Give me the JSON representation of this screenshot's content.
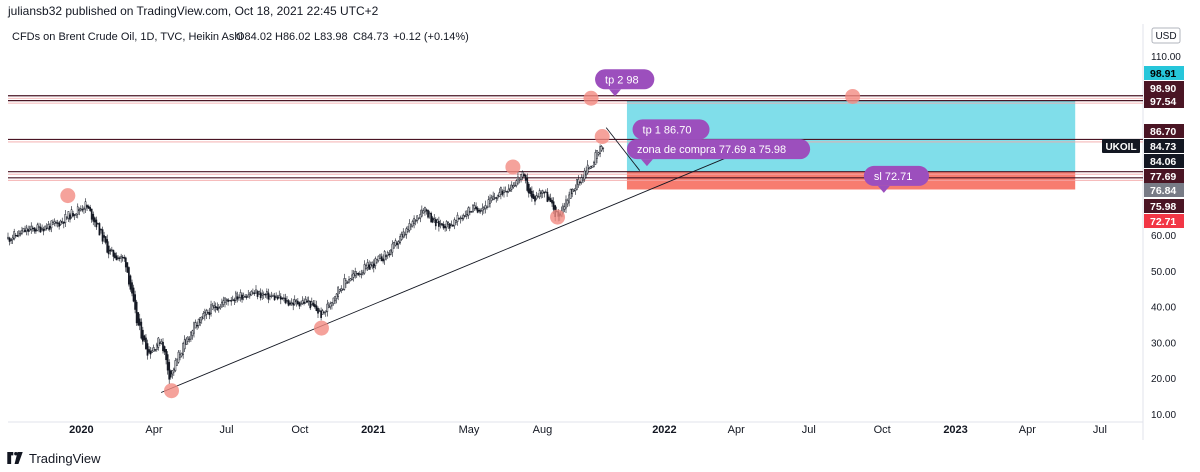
{
  "header": {
    "published": "juliansb32 published on TradingView.com, Oct 18, 2021 22:45 UTC+2"
  },
  "footer": {
    "brand": "TradingView"
  },
  "chart_data": {
    "type": "candlestick",
    "legend": "CFDs on Brent Crude Oil, 1D, TVC, Heikin Ashi",
    "ohlc": {
      "open": "O84.02",
      "high": "H86.02",
      "low": "L83.98",
      "close": "C84.73",
      "change": "+0.12 (+0.14%)"
    },
    "currency": "USD",
    "y_axis": {
      "ticks": [
        "110.00",
        "60.00",
        "50.00",
        "40.00",
        "30.00",
        "20.00",
        "10.00"
      ],
      "range": [
        10,
        110
      ]
    },
    "x_axis": {
      "ticks": [
        "2020",
        "Apr",
        "Jul",
        "Oct",
        "2021",
        "May",
        "Aug",
        "2022",
        "Apr",
        "Jul",
        "Oct",
        "2023",
        "Apr",
        "Jul"
      ]
    },
    "price_series": [
      [
        "2019-10-01",
        59
      ],
      [
        "2019-10-20",
        61
      ],
      [
        "2019-11-10",
        62
      ],
      [
        "2019-12-01",
        63
      ],
      [
        "2019-12-20",
        66
      ],
      [
        "2020-01-06",
        68.5
      ],
      [
        "2020-01-20",
        63
      ],
      [
        "2020-02-05",
        55
      ],
      [
        "2020-02-25",
        53
      ],
      [
        "2020-03-10",
        36
      ],
      [
        "2020-03-25",
        27
      ],
      [
        "2020-04-10",
        31
      ],
      [
        "2020-04-21",
        20
      ],
      [
        "2020-05-01",
        26
      ],
      [
        "2020-05-20",
        34
      ],
      [
        "2020-06-10",
        39
      ],
      [
        "2020-07-01",
        42
      ],
      [
        "2020-08-01",
        44
      ],
      [
        "2020-09-01",
        42.5
      ],
      [
        "2020-09-20",
        41
      ],
      [
        "2020-10-10",
        41.5
      ],
      [
        "2020-10-29",
        37.5
      ],
      [
        "2020-11-15",
        44
      ],
      [
        "2020-12-01",
        48
      ],
      [
        "2021-01-01",
        52
      ],
      [
        "2021-01-20",
        55
      ],
      [
        "2021-02-15",
        62
      ],
      [
        "2021-03-05",
        68
      ],
      [
        "2021-03-20",
        63
      ],
      [
        "2021-04-10",
        63
      ],
      [
        "2021-05-01",
        67
      ],
      [
        "2021-05-20",
        68
      ],
      [
        "2021-06-10",
        72
      ],
      [
        "2021-07-01",
        75.5
      ],
      [
        "2021-07-06",
        77
      ],
      [
        "2021-07-20",
        69.5
      ],
      [
        "2021-08-01",
        73
      ],
      [
        "2021-08-20",
        65
      ],
      [
        "2021-09-05",
        72
      ],
      [
        "2021-09-25",
        78
      ],
      [
        "2021-10-10",
        83
      ],
      [
        "2021-10-18",
        84.73
      ]
    ],
    "trendline": {
      "from": [
        "2020-04-10",
        16
      ],
      "to": [
        "2022-04-15",
        84
      ]
    },
    "horizontal_levels": [
      98.9,
      97.54,
      86.7,
      77.69,
      75.98
    ],
    "zones": [
      {
        "name": "target",
        "color": "#80deea",
        "top": 97.54,
        "bottom": 77.69,
        "x_start": "2021-11-15",
        "x_end": "2023-05-31"
      },
      {
        "name": "stop",
        "color": "#f77c6f",
        "top": 77.69,
        "bottom": 72.71,
        "x_start": "2021-11-15",
        "x_end": "2023-05-31"
      }
    ],
    "price_labels": [
      {
        "value": "98.91",
        "bg": "#26c6da",
        "fg": "#000000"
      },
      {
        "value": "98.90",
        "bg": "#4a1524",
        "fg": "#ffffff"
      },
      {
        "value": "97.54",
        "bg": "#4a1524",
        "fg": "#ffffff"
      },
      {
        "value": "86.70",
        "bg": "#4a1524",
        "fg": "#ffffff"
      },
      {
        "value": "84.73",
        "bg": "#131722",
        "fg": "#ffffff",
        "tag": "UKOIL"
      },
      {
        "value": "84.06",
        "bg": "#131722",
        "fg": "#ffffff"
      },
      {
        "value": "77.69",
        "bg": "#4a1524",
        "fg": "#ffffff"
      },
      {
        "value": "76.84",
        "bg": "#787b86",
        "fg": "#ffffff"
      },
      {
        "value": "75.98",
        "bg": "#4a1524",
        "fg": "#ffffff"
      },
      {
        "value": "72.71",
        "bg": "#f23645",
        "fg": "#ffffff"
      }
    ],
    "markers": [
      {
        "x": "2019-12-15",
        "y": 71
      },
      {
        "x": "2020-04-23",
        "y": 16.5
      },
      {
        "x": "2020-10-28",
        "y": 34
      },
      {
        "x": "2021-06-25",
        "y": 79
      },
      {
        "x": "2021-08-20",
        "y": 65
      },
      {
        "x": "2021-10-01",
        "y": 98.2
      },
      {
        "x": "2021-10-15",
        "y": 87.5
      },
      {
        "x": "2022-08-25",
        "y": 98.7
      }
    ],
    "annotations": [
      {
        "text": "tp 2 98",
        "x": "2021-10-06",
        "y": 103.5
      },
      {
        "text": "tp 1 86.70",
        "x": "2021-11-22",
        "y": 89.5
      },
      {
        "text": "zona de compra 77.69 a 75.98",
        "x": "2021-11-15",
        "y": 84
      },
      {
        "text": "sl 72.71",
        "x": "2022-09-08",
        "y": 76.5
      }
    ]
  }
}
